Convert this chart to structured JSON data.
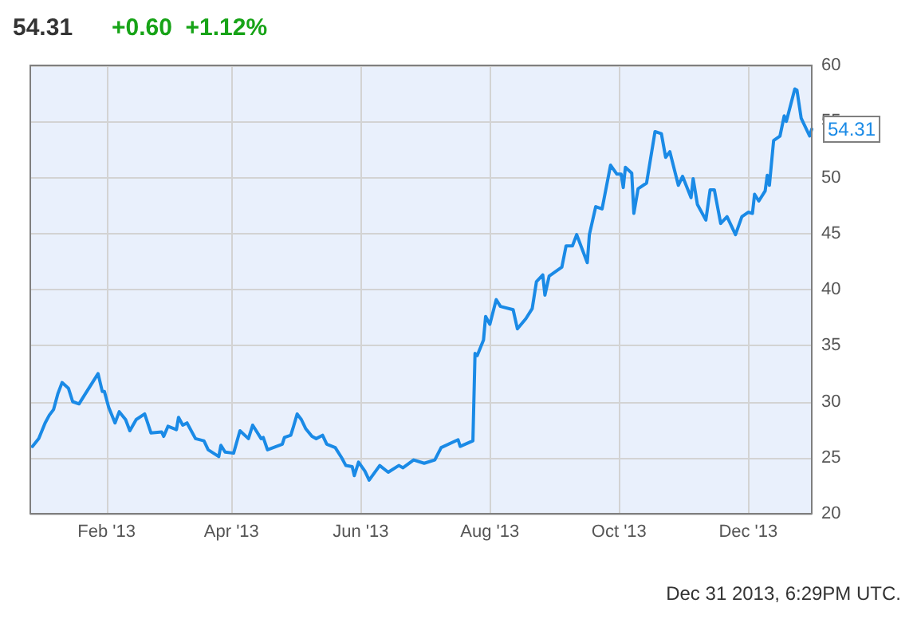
{
  "chart_data": {
    "type": "line",
    "title": "54.31",
    "subtitle": "+0.60  +1.12%",
    "annotations": [
      {
        "text": "54.31",
        "x": "2013-12-31",
        "y": 54.31
      },
      "Dec 31 2013, 6:29PM UTC."
    ],
    "x": [
      "2012-12-28",
      "2012-12-31",
      "2013-01-03",
      "2013-01-05",
      "2013-01-07",
      "2013-01-09",
      "2013-01-11",
      "2013-01-14",
      "2013-01-16",
      "2013-01-19",
      "2013-01-22",
      "2013-01-28",
      "2013-01-30",
      "2013-01-31",
      "2013-02-02",
      "2013-02-05",
      "2013-02-07",
      "2013-02-10",
      "2013-02-12",
      "2013-02-15",
      "2013-02-19",
      "2013-02-22",
      "2013-02-27",
      "2013-02-28",
      "2013-03-02",
      "2013-03-06",
      "2013-03-07",
      "2013-03-09",
      "2013-03-11",
      "2013-03-15",
      "2013-03-19",
      "2013-03-21",
      "2013-03-26",
      "2013-03-27",
      "2013-03-29",
      "2013-04-02",
      "2013-04-05",
      "2013-04-09",
      "2013-04-11",
      "2013-04-15",
      "2013-04-16",
      "2013-04-18",
      "2013-04-25",
      "2013-04-26",
      "2013-04-29",
      "2013-04-30",
      "2013-05-02",
      "2013-05-04",
      "2013-05-06",
      "2013-05-09",
      "2013-05-11",
      "2013-05-14",
      "2013-05-16",
      "2013-05-20",
      "2013-05-23",
      "2013-05-25",
      "2013-05-28",
      "2013-05-29",
      "2013-05-31",
      "2013-06-03",
      "2013-06-05",
      "2013-06-10",
      "2013-06-14",
      "2013-06-19",
      "2013-06-21",
      "2013-06-26",
      "2013-07-01",
      "2013-07-06",
      "2013-07-09",
      "2013-07-17",
      "2013-07-18",
      "2013-07-24",
      "2013-07-25",
      "2013-07-26",
      "2013-07-29",
      "2013-07-30",
      "2013-08-01",
      "2013-08-04",
      "2013-08-06",
      "2013-08-12",
      "2013-08-14",
      "2013-08-18",
      "2013-08-21",
      "2013-08-23",
      "2013-08-26",
      "2013-08-27",
      "2013-08-29",
      "2013-09-04",
      "2013-09-06",
      "2013-09-09",
      "2013-09-11",
      "2013-09-16",
      "2013-09-17",
      "2013-09-20",
      "2013-09-23",
      "2013-09-27",
      "2013-09-30",
      "2013-10-02",
      "2013-10-03",
      "2013-10-04",
      "2013-10-07",
      "2013-10-08",
      "2013-10-10",
      "2013-10-14",
      "2013-10-18",
      "2013-10-21",
      "2013-10-23",
      "2013-10-25",
      "2013-10-29",
      "2013-10-31",
      "2013-11-04",
      "2013-11-05",
      "2013-11-07",
      "2013-11-11",
      "2013-11-13",
      "2013-11-15",
      "2013-11-18",
      "2013-11-21",
      "2013-11-25",
      "2013-11-28",
      "2013-12-01",
      "2013-12-03",
      "2013-12-04",
      "2013-12-06",
      "2013-12-09",
      "2013-12-10",
      "2013-12-11",
      "2013-12-13",
      "2013-12-16",
      "2013-12-18",
      "2013-12-19",
      "2013-12-23",
      "2013-12-24",
      "2013-12-26",
      "2013-12-30",
      "2013-12-31"
    ],
    "series": [
      {
        "color": "#1a8ae6",
        "values": [
          26.0,
          26.7,
          28.1,
          28.8,
          29.3,
          30.7,
          31.7,
          31.2,
          30.0,
          29.8,
          30.7,
          32.5,
          30.9,
          30.9,
          29.5,
          28.1,
          29.1,
          28.4,
          27.4,
          28.4,
          28.9,
          27.2,
          27.3,
          26.9,
          27.8,
          27.5,
          28.6,
          27.9,
          28.1,
          26.7,
          26.5,
          25.7,
          25.1,
          26.1,
          25.5,
          25.4,
          27.4,
          26.7,
          27.9,
          26.7,
          26.8,
          25.7,
          26.2,
          26.8,
          27.0,
          27.6,
          28.9,
          28.4,
          27.6,
          26.9,
          26.7,
          27.0,
          26.2,
          25.9,
          25.0,
          24.3,
          24.2,
          23.4,
          24.6,
          23.8,
          23.0,
          24.3,
          23.7,
          24.3,
          24.1,
          24.8,
          24.5,
          24.8,
          25.9,
          26.6,
          26.0,
          26.5,
          34.3,
          34.1,
          35.5,
          37.6,
          36.9,
          39.1,
          38.5,
          38.2,
          36.5,
          37.4,
          38.3,
          40.7,
          41.3,
          39.5,
          41.2,
          42.0,
          43.9,
          43.9,
          44.9,
          42.4,
          44.9,
          47.4,
          47.2,
          51.1,
          50.3,
          50.3,
          49.1,
          50.9,
          50.4,
          46.8,
          49.0,
          49.5,
          54.1,
          53.9,
          51.8,
          52.3,
          49.3,
          50.1,
          48.2,
          49.9,
          47.6,
          46.2,
          48.9,
          48.9,
          45.9,
          46.5,
          44.9,
          46.5,
          46.9,
          46.8,
          48.5,
          47.9,
          48.8,
          50.2,
          49.3,
          53.3,
          53.7,
          55.5,
          55.0,
          57.9,
          57.8,
          55.3,
          53.7,
          54.31
        ]
      }
    ],
    "xlim": [
      "2012-12-27",
      "2013-12-31"
    ],
    "xticks": [
      {
        "value": "2013-02-01",
        "label": "Feb '13"
      },
      {
        "value": "2013-04-01",
        "label": "Apr '13"
      },
      {
        "value": "2013-06-01",
        "label": "Jun '13"
      },
      {
        "value": "2013-08-01",
        "label": "Aug '13"
      },
      {
        "value": "2013-10-01",
        "label": "Oct '13"
      },
      {
        "value": "2013-12-01",
        "label": "Dec '13"
      }
    ],
    "ylim": [
      20,
      60
    ],
    "yticks": [
      20,
      25,
      30,
      35,
      40,
      45,
      50,
      55,
      60
    ],
    "grid": true,
    "marker": "none",
    "line_style": "solid"
  }
}
